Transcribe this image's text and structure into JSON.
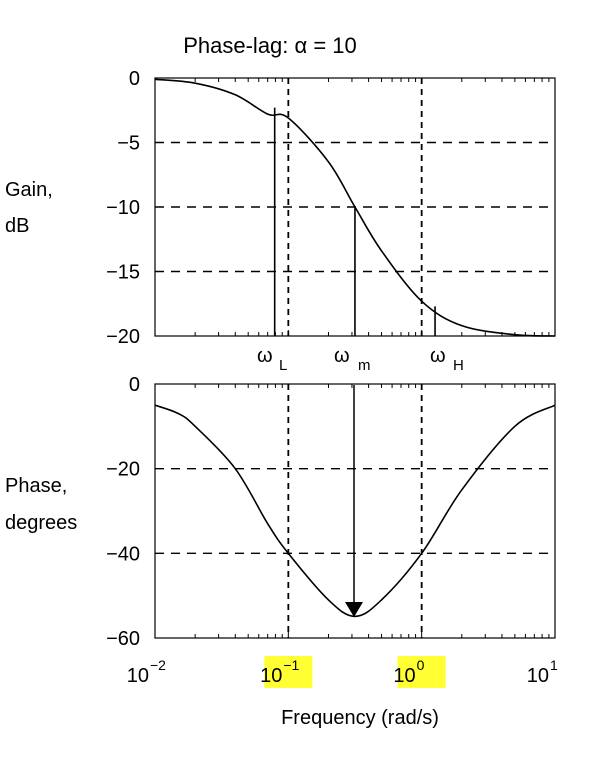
{
  "chart_data": [
    {
      "type": "line",
      "title": "Phase-lag: α = 10",
      "ylabel": [
        "Gain,",
        "dB"
      ],
      "xscale": "log",
      "xlim": [
        0.01,
        10
      ],
      "ylim": [
        -20,
        0
      ],
      "yticks": [
        "0",
        "−5",
        "−10",
        "−15",
        "−20"
      ],
      "grid": "dashed horizontal at −5, −10, −15; dashed vertical at 10^-1 and 10^0",
      "markers": [
        {
          "label_main": "ω",
          "label_sub": "L",
          "x": 0.079,
          "y": -2.3
        },
        {
          "label_main": "ω",
          "label_sub": "m",
          "x": 0.316,
          "y": -10
        },
        {
          "label_main": "ω",
          "label_sub": "H",
          "x": 1.26,
          "y": -17.7
        }
      ],
      "series": [
        {
          "x": [
            0.01,
            0.02,
            0.04,
            0.07,
            0.1,
            0.2,
            0.316,
            0.5,
            1,
            2,
            5,
            10
          ],
          "y": [
            -0.1,
            -0.4,
            -1.3,
            -2.8,
            -3.1,
            -6.5,
            -10,
            -13.4,
            -17.3,
            -19.2,
            -19.9,
            -20
          ]
        }
      ]
    },
    {
      "type": "line",
      "ylabel": [
        "Phase,",
        "degrees"
      ],
      "xlabel": "Frequency (rad/s)",
      "xscale": "log",
      "xlim": [
        0.01,
        10
      ],
      "ylim": [
        -60,
        0
      ],
      "yticks": [
        "0",
        "−20",
        "−40",
        "−60"
      ],
      "xticks": [
        {
          "base": "10",
          "exp": "−2",
          "highlight": false
        },
        {
          "base": "10",
          "exp": "−1",
          "highlight": true
        },
        {
          "base": "10",
          "exp": "0",
          "highlight": true
        },
        {
          "base": "10",
          "exp": "1",
          "highlight": false
        }
      ],
      "grid": "dashed horizontal at −20, −40; dashed vertical at 10^-1 and 10^0",
      "arrow": {
        "x": 0.316,
        "from_y": "ωm marker",
        "to_y": -54.9
      },
      "series": [
        {
          "x": [
            0.01,
            0.015,
            0.02,
            0.04,
            0.07,
            0.1,
            0.2,
            0.316,
            0.5,
            1,
            2,
            5,
            10
          ],
          "y": [
            -5,
            -7,
            -10,
            -20,
            -33,
            -40,
            -51,
            -54.9,
            -51,
            -40,
            -25,
            -10,
            -5
          ]
        }
      ]
    }
  ],
  "colors": {
    "highlight": "#ffff33",
    "ink": "#000000"
  }
}
